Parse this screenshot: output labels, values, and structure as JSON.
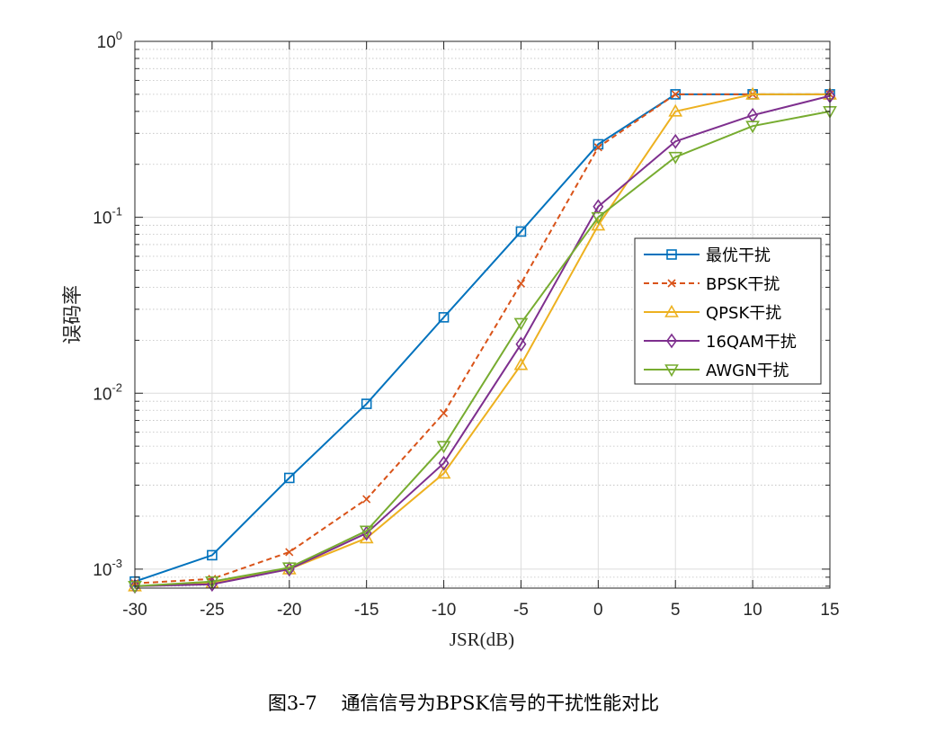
{
  "caption": "图3-7    通信信号为BPSK信号的干扰性能对比",
  "chart_data": {
    "type": "line",
    "xlabel": "JSR(dB)",
    "ylabel": "误码率",
    "x": [
      -30,
      -25,
      -20,
      -15,
      -10,
      -5,
      0,
      5,
      10,
      15
    ],
    "xticks": [
      "-30",
      "-25",
      "-20",
      "-15",
      "-10",
      "-5",
      "0",
      "5",
      "10",
      "15"
    ],
    "xlim": [
      -30,
      15
    ],
    "yscale": "log",
    "ylim": [
      0.00078,
      1
    ],
    "yticks": [
      {
        "value": 0.001,
        "base": "10",
        "exp": "-3"
      },
      {
        "value": 0.01,
        "base": "10",
        "exp": "-2"
      },
      {
        "value": 0.1,
        "base": "10",
        "exp": "-1"
      },
      {
        "value": 1,
        "base": "10",
        "exp": "0"
      }
    ],
    "grid": true,
    "legend_position": "right",
    "series": [
      {
        "name": "最优干扰",
        "color": "#0072BD",
        "marker": "square",
        "dash": "solid",
        "values": [
          0.00085,
          0.0012,
          0.0033,
          0.0087,
          0.027,
          0.083,
          0.26,
          0.5,
          0.5,
          0.5
        ]
      },
      {
        "name": "BPSK干扰",
        "color": "#D95319",
        "marker": "x",
        "dash": "dashed",
        "values": [
          0.00083,
          0.00088,
          0.00125,
          0.0025,
          0.0077,
          0.042,
          0.25,
          0.5,
          0.5,
          0.5
        ]
      },
      {
        "name": "QPSK干扰",
        "color": "#EDB120",
        "marker": "triangle-up",
        "dash": "solid",
        "values": [
          0.0008,
          0.00083,
          0.001,
          0.0015,
          0.0035,
          0.0145,
          0.09,
          0.4,
          0.5,
          0.5
        ]
      },
      {
        "name": "16QAM干扰",
        "color": "#7E2F8E",
        "marker": "diamond",
        "dash": "solid",
        "values": [
          0.0008,
          0.00082,
          0.001,
          0.0016,
          0.004,
          0.019,
          0.115,
          0.27,
          0.38,
          0.49
        ]
      },
      {
        "name": "AWGN干扰",
        "color": "#77AC30",
        "marker": "triangle-down",
        "dash": "solid",
        "values": [
          0.0008,
          0.00085,
          0.00102,
          0.00165,
          0.005,
          0.025,
          0.1,
          0.22,
          0.33,
          0.4
        ]
      }
    ]
  }
}
